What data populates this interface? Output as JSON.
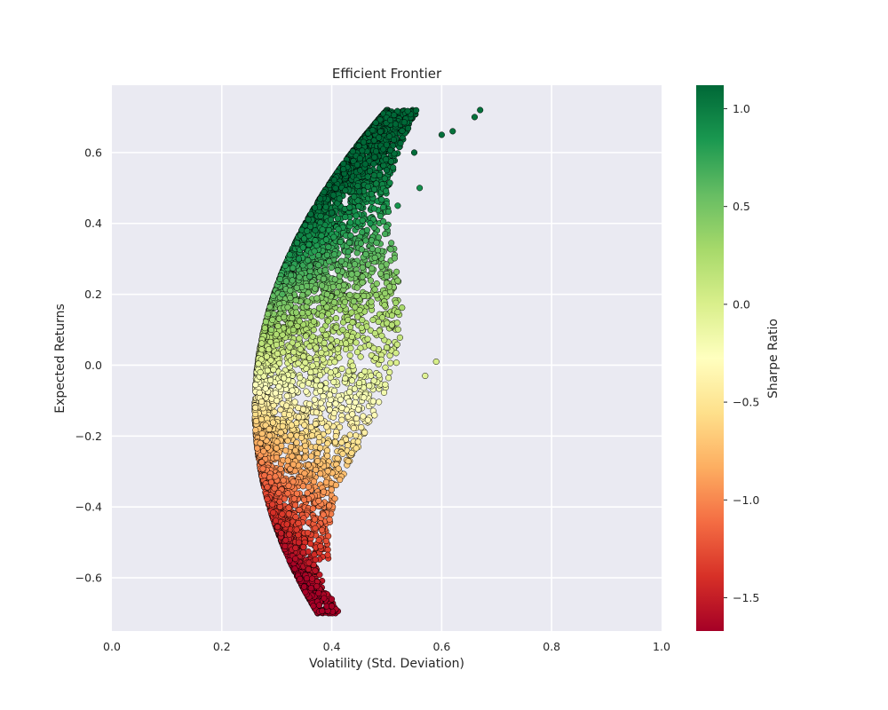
{
  "chart_data": {
    "type": "scatter",
    "title": "Efficient Frontier",
    "xlabel": "Volatility (Std. Deviation)",
    "ylabel": "Expected Returns",
    "xlim": [
      0.0,
      1.0
    ],
    "ylim": [
      -0.75,
      0.79
    ],
    "xticks": [
      "0.0",
      "0.2",
      "0.4",
      "0.6",
      "0.8",
      "1.0"
    ],
    "yticks": [
      "−0.6",
      "−0.4",
      "−0.2",
      "0.0",
      "0.2",
      "0.4",
      "0.6"
    ],
    "grid": true,
    "colormap": "RdYlGn",
    "colorbar": {
      "label": "Sharpe Ratio",
      "range": [
        -1.67,
        1.12
      ],
      "ticks": [
        "−1.5",
        "−1.0",
        "−0.5",
        "0.0",
        "0.5",
        "1.0"
      ]
    },
    "points": [
      {
        "x": 0.261,
        "y": -0.12,
        "sharpe": -0.46
      },
      {
        "x": 0.27,
        "y": -0.02,
        "sharpe": -0.07
      },
      {
        "x": 0.27,
        "y": -0.22,
        "sharpe": -0.81
      },
      {
        "x": 0.29,
        "y": 0.1,
        "sharpe": 0.34
      },
      {
        "x": 0.29,
        "y": -0.33,
        "sharpe": -1.14
      },
      {
        "x": 0.31,
        "y": 0.2,
        "sharpe": 0.65
      },
      {
        "x": 0.31,
        "y": -0.42,
        "sharpe": -1.35
      },
      {
        "x": 0.34,
        "y": 0.3,
        "sharpe": 0.88
      },
      {
        "x": 0.34,
        "y": -0.5,
        "sharpe": -1.47
      },
      {
        "x": 0.37,
        "y": 0.38,
        "sharpe": 1.03
      },
      {
        "x": 0.37,
        "y": -0.58,
        "sharpe": -1.57
      },
      {
        "x": 0.4,
        "y": 0.43,
        "sharpe": 1.08
      },
      {
        "x": 0.4,
        "y": -0.66,
        "sharpe": -1.65
      },
      {
        "x": 0.4,
        "y": -0.68,
        "sharpe": -1.67
      },
      {
        "x": 0.45,
        "y": 0.49,
        "sharpe": 1.09
      },
      {
        "x": 0.5,
        "y": 0.55,
        "sharpe": 1.1
      },
      {
        "x": 0.55,
        "y": 0.6,
        "sharpe": 1.09
      },
      {
        "x": 0.6,
        "y": 0.65,
        "sharpe": 1.08
      },
      {
        "x": 0.62,
        "y": 0.66,
        "sharpe": 1.06
      },
      {
        "x": 0.66,
        "y": 0.7,
        "sharpe": 1.06
      },
      {
        "x": 0.67,
        "y": 0.72,
        "sharpe": 1.07
      },
      {
        "x": 0.33,
        "y": 0.1,
        "sharpe": 0.3
      },
      {
        "x": 0.36,
        "y": 0.02,
        "sharpe": 0.05
      },
      {
        "x": 0.38,
        "y": -0.15,
        "sharpe": -0.4
      },
      {
        "x": 0.42,
        "y": 0.1,
        "sharpe": 0.24
      },
      {
        "x": 0.45,
        "y": -0.05,
        "sharpe": -0.11
      },
      {
        "x": 0.48,
        "y": 0.02,
        "sharpe": 0.04
      },
      {
        "x": 0.5,
        "y": 0.05,
        "sharpe": 0.1
      },
      {
        "x": 0.52,
        "y": 0.15,
        "sharpe": 0.29
      },
      {
        "x": 0.57,
        "y": -0.03,
        "sharpe": -0.05
      },
      {
        "x": 0.59,
        "y": 0.01,
        "sharpe": 0.02
      },
      {
        "x": 0.46,
        "y": -0.19,
        "sharpe": -0.41
      },
      {
        "x": 0.42,
        "y": -0.25,
        "sharpe": -0.6
      },
      {
        "x": 0.39,
        "y": -0.33,
        "sharpe": -0.85
      },
      {
        "x": 0.37,
        "y": -0.46,
        "sharpe": -1.24
      },
      {
        "x": 0.36,
        "y": 0.25,
        "sharpe": 0.69
      },
      {
        "x": 0.43,
        "y": 0.32,
        "sharpe": 0.74
      },
      {
        "x": 0.47,
        "y": 0.4,
        "sharpe": 0.85
      },
      {
        "x": 0.52,
        "y": 0.45,
        "sharpe": 0.87
      },
      {
        "x": 0.56,
        "y": 0.5,
        "sharpe": 0.89
      },
      {
        "x": 0.5,
        "y": 0.25,
        "sharpe": 0.5
      },
      {
        "x": 0.44,
        "y": 0.18,
        "sharpe": 0.41
      },
      {
        "x": 0.3,
        "y": -0.1,
        "sharpe": -0.33
      },
      {
        "x": 0.33,
        "y": -0.28,
        "sharpe": -0.85
      },
      {
        "x": 0.35,
        "y": -0.38,
        "sharpe": -1.09
      }
    ]
  },
  "colors": {
    "axes_bg": "#eaeaf2",
    "grid": "#ffffff",
    "text": "#262626",
    "cmap_stops": [
      "#a50026",
      "#d73027",
      "#f46d43",
      "#fdae61",
      "#fee08b",
      "#ffffbf",
      "#d9ef8b",
      "#a6d96a",
      "#66bd63",
      "#1a9850",
      "#006837"
    ]
  }
}
